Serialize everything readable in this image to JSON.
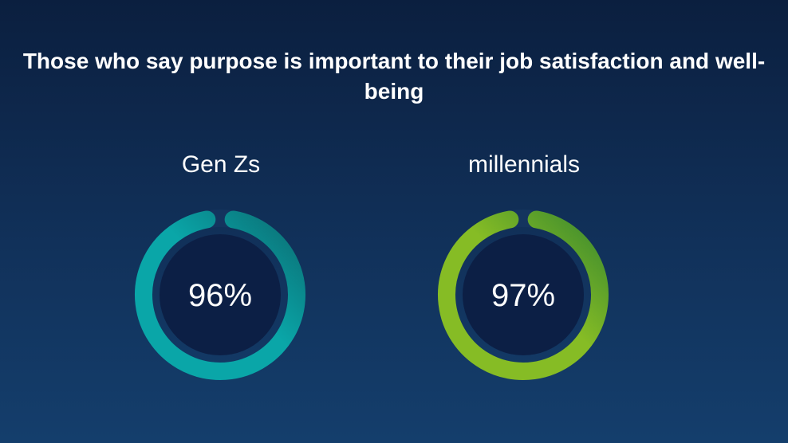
{
  "chart_data": {
    "type": "pie",
    "title": "Those who say purpose is important to their job satisfaction and well-being",
    "series": [
      {
        "name": "Gen Zs",
        "value": 96,
        "label": "96%",
        "color": "#0aa6a8",
        "gradient_end": "#0b6e74"
      },
      {
        "name": "millennials",
        "value": 97,
        "label": "97%",
        "color": "#86bc25",
        "gradient_end": "#3c8a2e"
      }
    ]
  }
}
